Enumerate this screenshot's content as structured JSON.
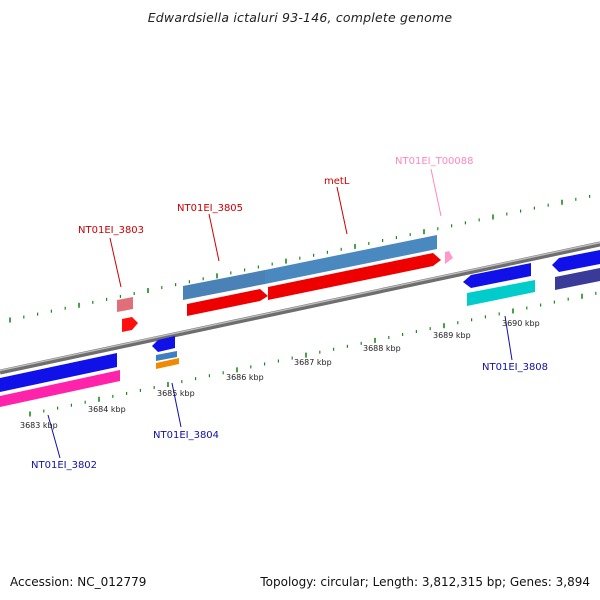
{
  "title": "Edwardsiella ictaluri 93-146, complete genome",
  "footer": {
    "accession": "Accession: NC_012779",
    "summary": "Topology: circular; Length: 3,812,315 bp; Genes: 3,894"
  },
  "colors": {
    "backbone": "#8c8c8c",
    "tick": "#1a8a1a",
    "forward_label": "#cc0000",
    "reverse_label": "#1010a8",
    "trna_label": "#ff88bb",
    "kbp_label": "#222222"
  },
  "kbp_labels": [
    "3683 kbp",
    "3684 kbp",
    "3685 kbp",
    "3686 kbp",
    "3687 kbp",
    "3688 kbp",
    "3689 kbp",
    "3690 kbp"
  ],
  "gene_labels": [
    {
      "id": "NT01EI_3803",
      "text": "NT01EI_3803",
      "kind": "forward"
    },
    {
      "id": "NT01EI_3805",
      "text": "NT01EI_3805",
      "kind": "forward"
    },
    {
      "id": "metL",
      "text": "metL",
      "kind": "forward"
    },
    {
      "id": "NT01EI_T00088",
      "text": "NT01EI_T00088",
      "kind": "trna"
    },
    {
      "id": "NT01EI_3802",
      "text": "NT01EI_3802",
      "kind": "reverse"
    },
    {
      "id": "NT01EI_3804",
      "text": "NT01EI_3804",
      "kind": "reverse"
    },
    {
      "id": "NT01EI_3808",
      "text": "NT01EI_3808",
      "kind": "reverse"
    }
  ]
}
